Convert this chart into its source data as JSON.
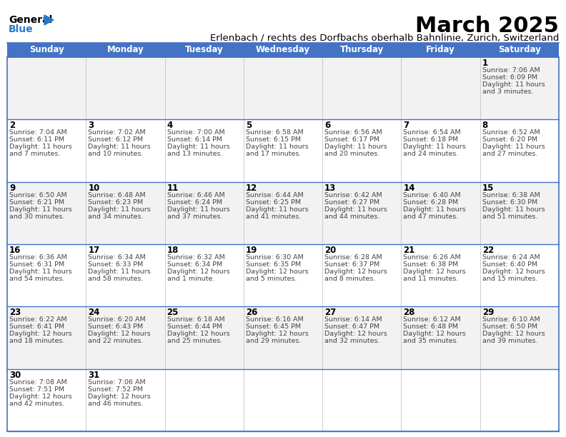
{
  "title": "March 2025",
  "subtitle": "Erlenbach / rechts des Dorfbachs oberhalb Bahnlinie, Zurich, Switzerland",
  "days_of_week": [
    "Sunday",
    "Monday",
    "Tuesday",
    "Wednesday",
    "Thursday",
    "Friday",
    "Saturday"
  ],
  "header_bg": "#4472C4",
  "header_text": "#FFFFFF",
  "alt_row_bg": "#F2F2F2",
  "normal_row_bg": "#FFFFFF",
  "cell_border": "#4472C4",
  "title_color": "#000000",
  "text_color": "#444444",
  "calendar_data": {
    "1": {
      "sunrise": "7:06 AM",
      "sunset": "6:09 PM",
      "daylight_line1": "Daylight: 11 hours",
      "daylight_line2": "and 3 minutes."
    },
    "2": {
      "sunrise": "7:04 AM",
      "sunset": "6:11 PM",
      "daylight_line1": "Daylight: 11 hours",
      "daylight_line2": "and 7 minutes."
    },
    "3": {
      "sunrise": "7:02 AM",
      "sunset": "6:12 PM",
      "daylight_line1": "Daylight: 11 hours",
      "daylight_line2": "and 10 minutes."
    },
    "4": {
      "sunrise": "7:00 AM",
      "sunset": "6:14 PM",
      "daylight_line1": "Daylight: 11 hours",
      "daylight_line2": "and 13 minutes."
    },
    "5": {
      "sunrise": "6:58 AM",
      "sunset": "6:15 PM",
      "daylight_line1": "Daylight: 11 hours",
      "daylight_line2": "and 17 minutes."
    },
    "6": {
      "sunrise": "6:56 AM",
      "sunset": "6:17 PM",
      "daylight_line1": "Daylight: 11 hours",
      "daylight_line2": "and 20 minutes."
    },
    "7": {
      "sunrise": "6:54 AM",
      "sunset": "6:18 PM",
      "daylight_line1": "Daylight: 11 hours",
      "daylight_line2": "and 24 minutes."
    },
    "8": {
      "sunrise": "6:52 AM",
      "sunset": "6:20 PM",
      "daylight_line1": "Daylight: 11 hours",
      "daylight_line2": "and 27 minutes."
    },
    "9": {
      "sunrise": "6:50 AM",
      "sunset": "6:21 PM",
      "daylight_line1": "Daylight: 11 hours",
      "daylight_line2": "and 30 minutes."
    },
    "10": {
      "sunrise": "6:48 AM",
      "sunset": "6:23 PM",
      "daylight_line1": "Daylight: 11 hours",
      "daylight_line2": "and 34 minutes."
    },
    "11": {
      "sunrise": "6:46 AM",
      "sunset": "6:24 PM",
      "daylight_line1": "Daylight: 11 hours",
      "daylight_line2": "and 37 minutes."
    },
    "12": {
      "sunrise": "6:44 AM",
      "sunset": "6:25 PM",
      "daylight_line1": "Daylight: 11 hours",
      "daylight_line2": "and 41 minutes."
    },
    "13": {
      "sunrise": "6:42 AM",
      "sunset": "6:27 PM",
      "daylight_line1": "Daylight: 11 hours",
      "daylight_line2": "and 44 minutes."
    },
    "14": {
      "sunrise": "6:40 AM",
      "sunset": "6:28 PM",
      "daylight_line1": "Daylight: 11 hours",
      "daylight_line2": "and 47 minutes."
    },
    "15": {
      "sunrise": "6:38 AM",
      "sunset": "6:30 PM",
      "daylight_line1": "Daylight: 11 hours",
      "daylight_line2": "and 51 minutes."
    },
    "16": {
      "sunrise": "6:36 AM",
      "sunset": "6:31 PM",
      "daylight_line1": "Daylight: 11 hours",
      "daylight_line2": "and 54 minutes."
    },
    "17": {
      "sunrise": "6:34 AM",
      "sunset": "6:33 PM",
      "daylight_line1": "Daylight: 11 hours",
      "daylight_line2": "and 58 minutes."
    },
    "18": {
      "sunrise": "6:32 AM",
      "sunset": "6:34 PM",
      "daylight_line1": "Daylight: 12 hours",
      "daylight_line2": "and 1 minute."
    },
    "19": {
      "sunrise": "6:30 AM",
      "sunset": "6:35 PM",
      "daylight_line1": "Daylight: 12 hours",
      "daylight_line2": "and 5 minutes."
    },
    "20": {
      "sunrise": "6:28 AM",
      "sunset": "6:37 PM",
      "daylight_line1": "Daylight: 12 hours",
      "daylight_line2": "and 8 minutes."
    },
    "21": {
      "sunrise": "6:26 AM",
      "sunset": "6:38 PM",
      "daylight_line1": "Daylight: 12 hours",
      "daylight_line2": "and 11 minutes."
    },
    "22": {
      "sunrise": "6:24 AM",
      "sunset": "6:40 PM",
      "daylight_line1": "Daylight: 12 hours",
      "daylight_line2": "and 15 minutes."
    },
    "23": {
      "sunrise": "6:22 AM",
      "sunset": "6:41 PM",
      "daylight_line1": "Daylight: 12 hours",
      "daylight_line2": "and 18 minutes."
    },
    "24": {
      "sunrise": "6:20 AM",
      "sunset": "6:43 PM",
      "daylight_line1": "Daylight: 12 hours",
      "daylight_line2": "and 22 minutes."
    },
    "25": {
      "sunrise": "6:18 AM",
      "sunset": "6:44 PM",
      "daylight_line1": "Daylight: 12 hours",
      "daylight_line2": "and 25 minutes."
    },
    "26": {
      "sunrise": "6:16 AM",
      "sunset": "6:45 PM",
      "daylight_line1": "Daylight: 12 hours",
      "daylight_line2": "and 29 minutes."
    },
    "27": {
      "sunrise": "6:14 AM",
      "sunset": "6:47 PM",
      "daylight_line1": "Daylight: 12 hours",
      "daylight_line2": "and 32 minutes."
    },
    "28": {
      "sunrise": "6:12 AM",
      "sunset": "6:48 PM",
      "daylight_line1": "Daylight: 12 hours",
      "daylight_line2": "and 35 minutes."
    },
    "29": {
      "sunrise": "6:10 AM",
      "sunset": "6:50 PM",
      "daylight_line1": "Daylight: 12 hours",
      "daylight_line2": "and 39 minutes."
    },
    "30": {
      "sunrise": "7:08 AM",
      "sunset": "7:51 PM",
      "daylight_line1": "Daylight: 12 hours",
      "daylight_line2": "and 42 minutes."
    },
    "31": {
      "sunrise": "7:06 AM",
      "sunset": "7:52 PM",
      "daylight_line1": "Daylight: 12 hours",
      "daylight_line2": "and 46 minutes."
    }
  },
  "figsize": [
    7.92,
    6.12
  ],
  "dpi": 100
}
